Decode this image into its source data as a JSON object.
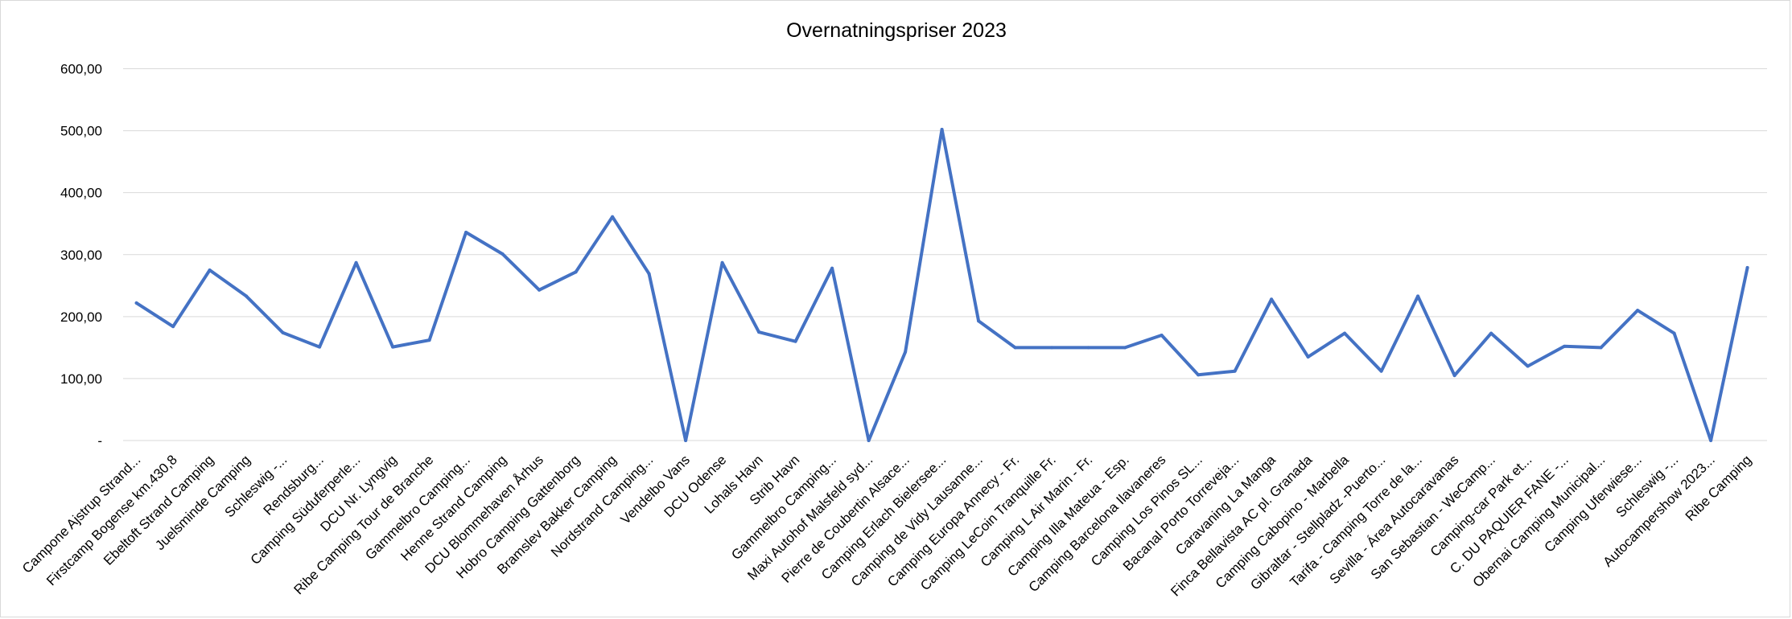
{
  "chart_data": {
    "type": "line",
    "title": "Overnatningspriser 2023",
    "xlabel": "",
    "ylabel": "",
    "ylim": [
      0,
      600
    ],
    "y_ticks": [
      {
        "value": 0,
        "label": "-"
      },
      {
        "value": 100,
        "label": "100,00"
      },
      {
        "value": 200,
        "label": "200,00"
      },
      {
        "value": 300,
        "label": "300,00"
      },
      {
        "value": 400,
        "label": "400,00"
      },
      {
        "value": 500,
        "label": "500,00"
      },
      {
        "value": 600,
        "label": "600,00"
      }
    ],
    "grid": true,
    "legend": "none",
    "categories": [
      "Campone Ajstrup Strand...",
      "Firstcamp Bogense km.430,8",
      "Ebeltoft Strand Camping",
      "Juelsminde Camping",
      "Schleswig -...",
      "Rendsburg...",
      "Camping Süduferperle...",
      "DCU Nr. Lyngvig",
      "Ribe Camping Tour de Branche",
      "Gammelbro Camping...",
      "Henne Strand Camping",
      "DCU Blommehaven Århus",
      "Hobro Camping Gattenborg",
      "Bramslev Bakker Camping",
      "Nordstrand Camping...",
      "Vendelbo Vans",
      "DCU Odense",
      "Lohals Havn",
      "Strib Havn",
      "Gammelbro Camping...",
      "Maxi Autohof Malsfeld syd...",
      "Pierre de Coubertin Alsace...",
      "Camping Erlach Bielersee...",
      "Camping de Vidy Lausanne...",
      "Camping Europa Annecy - Fr.",
      "Camping LeCoin Tranquille Fr.",
      "Camping L Air Marin - Fr.",
      "Camping Illa Mateua - Esp.",
      "Camping Barcelona Ilavaneres",
      "Camping Los Pinos SL...",
      "Bacanal Porto Torreveja...",
      "Caravaning La Manga",
      "Finca Bellavista AC pl. Granada",
      "Camping Cabopino - Marbella",
      "Gibraltar - Stellpladz -Puerto...",
      "Tarifa - Camping Torre de la...",
      "Sevilla - Área Autocaravanas",
      "San Sebastian - WeCamp...",
      "Camping-car Park et...",
      "C. DU PAQUIER FANE -...",
      "Obernai Camping Municipal...",
      "Camping Uferwiese...",
      "Schleswig -...",
      "Autocampershow 2023...",
      "Ribe Camping"
    ],
    "series": [
      {
        "color": "#4472c4",
        "values": [
          222,
          184,
          275,
          233,
          174,
          151,
          287,
          151,
          162,
          336,
          301,
          243,
          272,
          361,
          269,
          0,
          287,
          175,
          160,
          278,
          0,
          143,
          502,
          193,
          150,
          150,
          150,
          150,
          170,
          106,
          112,
          228,
          135,
          173,
          112,
          233,
          105,
          173,
          120,
          152,
          150,
          210,
          173,
          0,
          279
        ]
      }
    ]
  }
}
